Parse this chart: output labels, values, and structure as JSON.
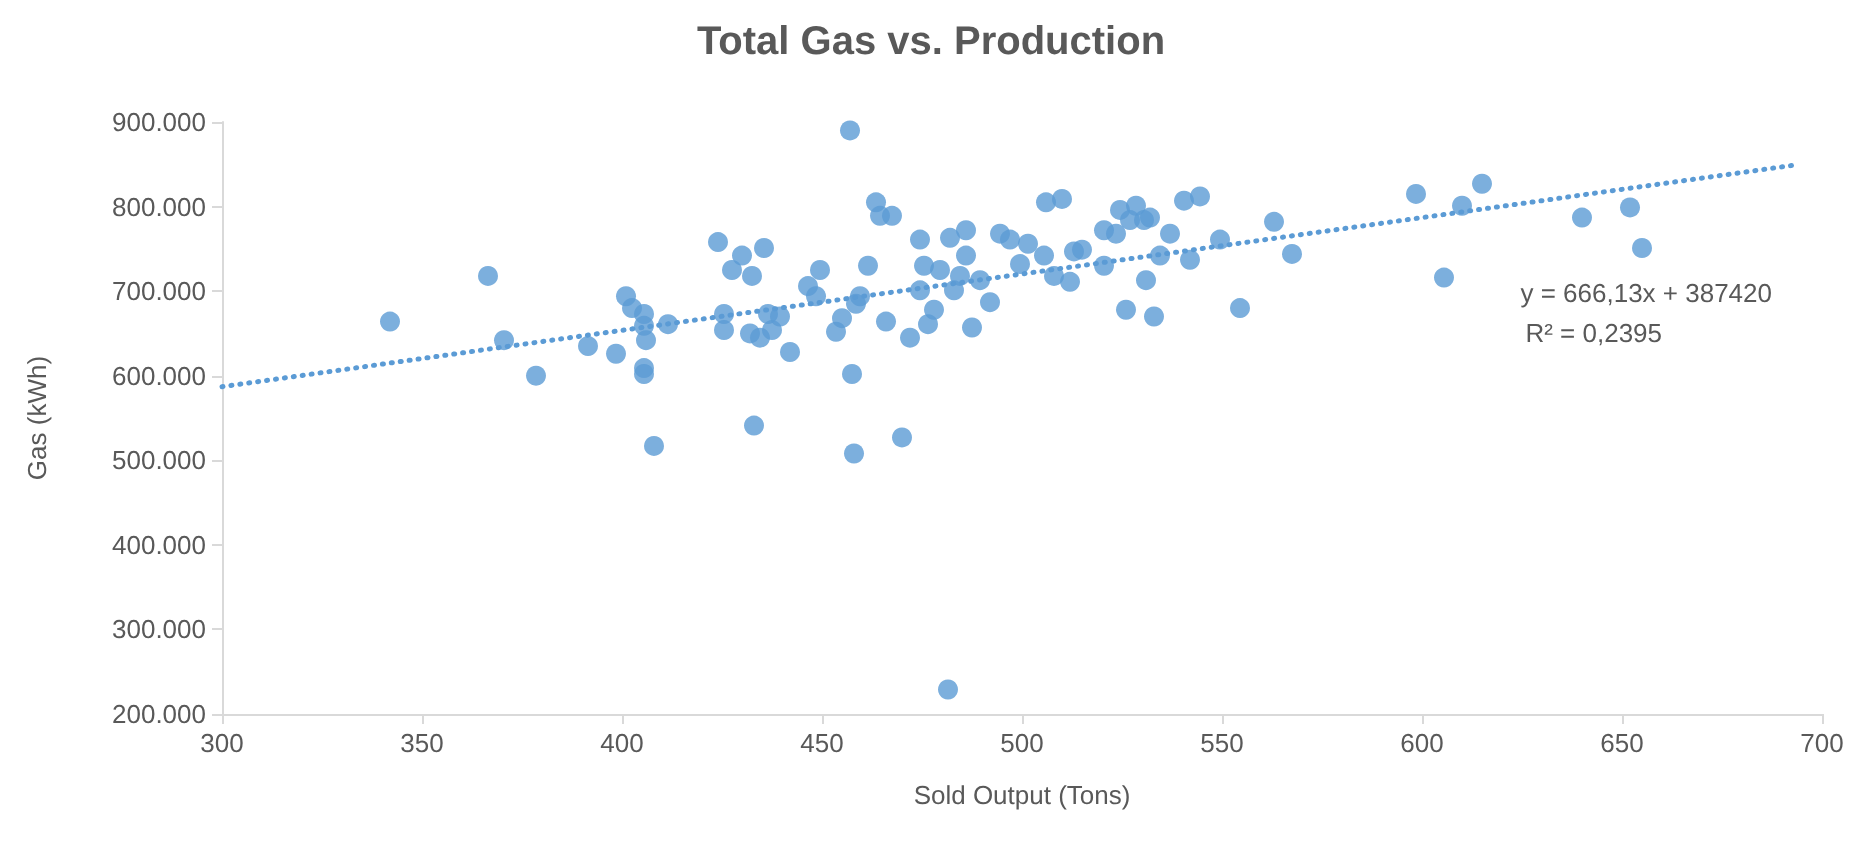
{
  "chart_data": {
    "type": "scatter",
    "title": "Total Gas vs. Production",
    "xlabel": "Sold Output (Tons)",
    "ylabel": "Gas (kWh)",
    "xlim": [
      300,
      700
    ],
    "xticks": [
      300,
      350,
      400,
      450,
      500,
      550,
      600,
      650,
      700
    ],
    "ylim": [
      200000,
      900000
    ],
    "yticks": [
      {
        "value": 200000,
        "label": "200.000"
      },
      {
        "value": 300000,
        "label": "300.000"
      },
      {
        "value": 400000,
        "label": "400.000"
      },
      {
        "value": 500000,
        "label": "500.000"
      },
      {
        "value": 600000,
        "label": "600.000"
      },
      {
        "value": 700000,
        "label": "700.000"
      },
      {
        "value": 800000,
        "label": "800.000"
      },
      {
        "value": 900000,
        "label": "900.000"
      }
    ],
    "grid": false,
    "annotations": [
      "y = 666,13x + 387420",
      "R² = 0,2395"
    ],
    "series": [
      {
        "color": "#5b9bd5",
        "marker": "circle",
        "x": [
          342,
          366.5,
          370.5,
          378.5,
          391.5,
          398.5,
          401,
          402.5,
          405.5,
          405.5,
          406,
          405.5,
          405.5,
          408,
          411.5,
          424,
          425.5,
          425.5,
          427.5,
          430,
          432,
          432.5,
          433,
          434.5,
          435.5,
          436.5,
          437.5,
          439.5,
          442,
          446.5,
          448.5,
          449.5,
          453.5,
          455,
          457,
          457.5,
          458,
          458.5,
          459.5,
          461.5,
          463.5,
          464.5,
          466,
          467.5,
          470,
          472,
          474.5,
          474.5,
          475.5,
          476.5,
          478,
          479.5,
          481.5,
          482,
          483,
          484.5,
          486,
          486,
          487.5,
          489.5,
          492,
          494.5,
          497,
          499.5,
          501.5,
          505.5,
          506,
          508,
          510,
          512,
          513,
          515,
          520.5,
          520.5,
          523.5,
          524.5,
          526,
          527,
          528.5,
          530.5,
          531,
          532,
          533,
          534.5,
          537,
          540.5,
          542,
          544.5,
          549.5,
          554.5,
          563,
          567.5,
          598.5,
          605.5,
          610,
          615,
          640,
          652,
          655
        ],
        "values": [
          664000,
          718000,
          642000,
          600000,
          635000,
          626000,
          694000,
          680000,
          673000,
          659000,
          642000,
          609000,
          602000,
          517000,
          661000,
          758000,
          673000,
          654000,
          725000,
          742000,
          650000,
          718000,
          541000,
          645000,
          751000,
          673000,
          654000,
          670000,
          628000,
          706000,
          694000,
          725000,
          652000,
          668000,
          890000,
          602000,
          508000,
          685000,
          694000,
          730000,
          805000,
          789000,
          664000,
          789000,
          527000,
          645000,
          701000,
          761000,
          730000,
          661000,
          678000,
          725000,
          229000,
          763000,
          701000,
          718000,
          772000,
          742000,
          657000,
          713000,
          687000,
          768000,
          761000,
          732000,
          756000,
          742000,
          805000,
          718000,
          809000,
          711000,
          747000,
          749000,
          772000,
          730000,
          768000,
          796000,
          678000,
          784000,
          801000,
          784000,
          713000,
          787000,
          670000,
          742000,
          768000,
          807000,
          737000,
          812000,
          761000,
          680000,
          782000,
          744000,
          815000,
          716000,
          801000,
          827000,
          787000,
          799000,
          751000
        ]
      },
      {
        "type": "line",
        "color": "#5b9bd5",
        "marker": "none",
        "line_style": "dotted",
        "x": [
          300,
          693
        ],
        "values": [
          587000,
          849000
        ]
      }
    ]
  }
}
